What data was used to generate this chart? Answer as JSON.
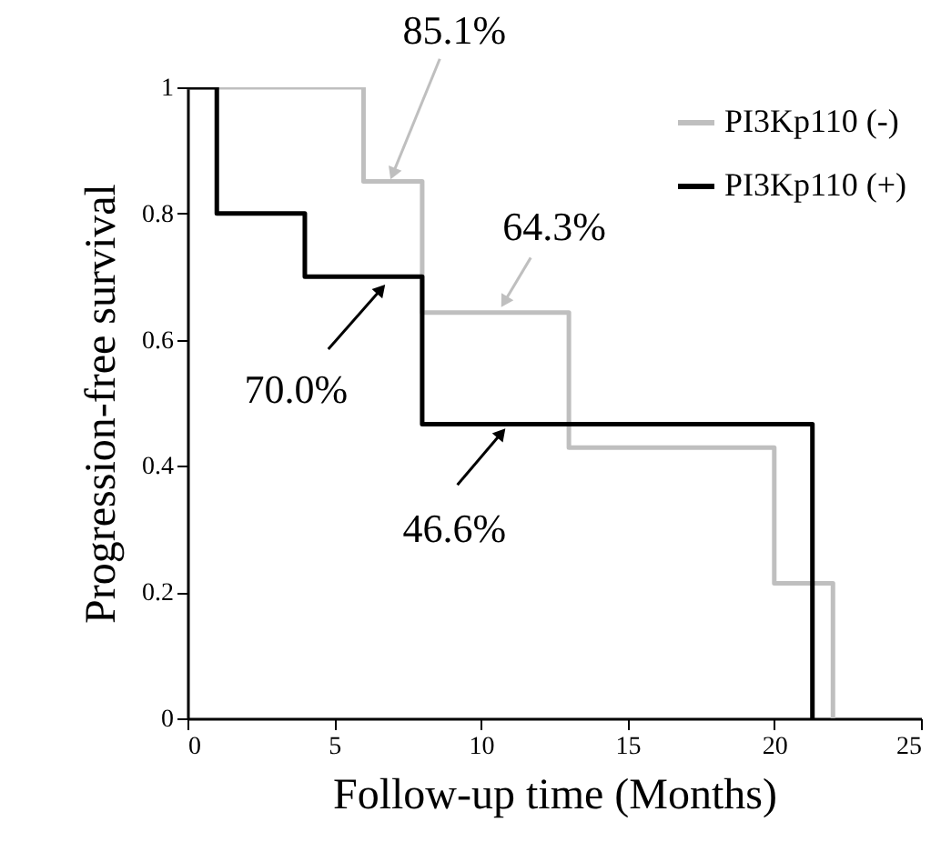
{
  "chart_data": {
    "type": "step",
    "xlabel": "Follow-up time (Months)",
    "ylabel": "Progression-free survival",
    "series": [
      {
        "name": "PI3Kp110 (-)",
        "color": "#bfbfbf",
        "x": [
          0,
          6,
          8,
          13,
          20,
          22
        ],
        "values": [
          1,
          0.851,
          0.643,
          0.429,
          0.214,
          0
        ]
      },
      {
        "name": "PI3Kp110 (+)",
        "color": "#000000",
        "x": [
          0,
          1,
          4,
          8,
          21.3
        ],
        "values": [
          1,
          0.8,
          0.7,
          0.466,
          0
        ]
      }
    ],
    "xlim": [
      0,
      25
    ],
    "xticks": [
      0,
      5,
      10,
      15,
      20,
      25
    ],
    "ylim": [
      0,
      1
    ],
    "yticks": [
      0,
      0.2,
      0.4,
      0.6,
      0.8,
      1
    ],
    "annotations": [
      {
        "text": "85.1%",
        "x": 7,
        "y": 0.851
      },
      {
        "text": "64.3%",
        "x": 10.8,
        "y": 0.643
      },
      {
        "text": "70.0%",
        "x": 6.6,
        "y": 0.7
      },
      {
        "text": "46.6%",
        "x": 10.7,
        "y": 0.466
      }
    ],
    "legend": "top right",
    "grid": false,
    "marker": "none",
    "line_style": "solid"
  }
}
